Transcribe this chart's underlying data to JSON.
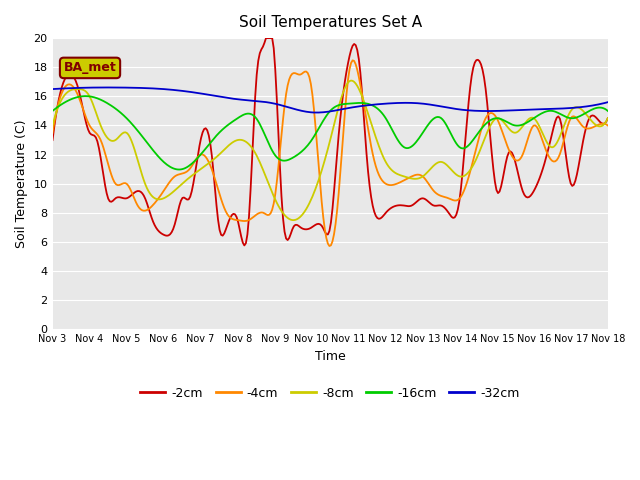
{
  "title": "Soil Temperatures Set A",
  "xlabel": "Time",
  "ylabel": "Soil Temperature (C)",
  "ylim": [
    0,
    20
  ],
  "yticks": [
    0,
    2,
    4,
    6,
    8,
    10,
    12,
    14,
    16,
    18,
    20
  ],
  "xtick_labels": [
    "Nov 3",
    "Nov 4",
    "Nov 5",
    "Nov 6",
    "Nov 7",
    "Nov 8",
    "Nov 9",
    "Nov 10",
    "Nov 11",
    "Nov 12",
    "Nov 13",
    "Nov 14",
    "Nov 15",
    "Nov 16",
    "Nov 17",
    "Nov 18"
  ],
  "background_color": "#e8e8e8",
  "axes_bg": "#e8e8e8",
  "line_colors": {
    "-2cm": "#cc0000",
    "-4cm": "#ff8800",
    "-8cm": "#cccc00",
    "-16cm": "#00cc00",
    "-32cm": "#0000cc"
  },
  "legend_label": "BA_met",
  "legend_text_color": "#800000",
  "legend_box_color": "#cccc00"
}
